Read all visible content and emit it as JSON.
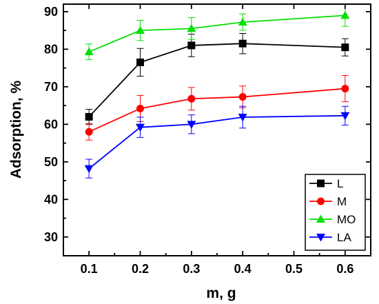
{
  "chart_data": {
    "type": "line",
    "xlabel": "m, g",
    "ylabel": "Adsorption, %",
    "xlim": [
      0.05,
      0.65
    ],
    "ylim": [
      25,
      92
    ],
    "xticks": [
      "0.1",
      "0.2",
      "0.3",
      "0.4",
      "0.5",
      "0.6"
    ],
    "yticks": [
      "30",
      "40",
      "50",
      "60",
      "70",
      "80",
      "90"
    ],
    "legend_position": "bottom-right",
    "grid": false,
    "x": [
      0.1,
      0.2,
      0.3,
      0.4,
      0.6
    ],
    "series": [
      {
        "name": "L",
        "color": "#000000",
        "marker": "square",
        "values": [
          62.0,
          76.5,
          81.0,
          81.5,
          80.5
        ],
        "errors": [
          2.0,
          3.7,
          3.0,
          2.7,
          2.3
        ]
      },
      {
        "name": "M",
        "color": "#ff0000",
        "marker": "circle",
        "values": [
          58.0,
          64.2,
          66.8,
          67.3,
          69.5
        ],
        "errors": [
          2.2,
          3.5,
          3.0,
          2.9,
          3.5
        ]
      },
      {
        "name": "MO",
        "color": "#00e000",
        "marker": "triangle-up",
        "values": [
          79.3,
          85.0,
          85.5,
          87.2,
          89.0
        ],
        "errors": [
          2.1,
          2.7,
          2.9,
          2.2,
          2.9
        ]
      },
      {
        "name": "LA",
        "color": "#0000ff",
        "marker": "triangle-down",
        "values": [
          48.2,
          59.2,
          60.0,
          61.9,
          62.3
        ],
        "errors": [
          2.5,
          2.7,
          2.5,
          2.9,
          2.5
        ]
      }
    ]
  }
}
